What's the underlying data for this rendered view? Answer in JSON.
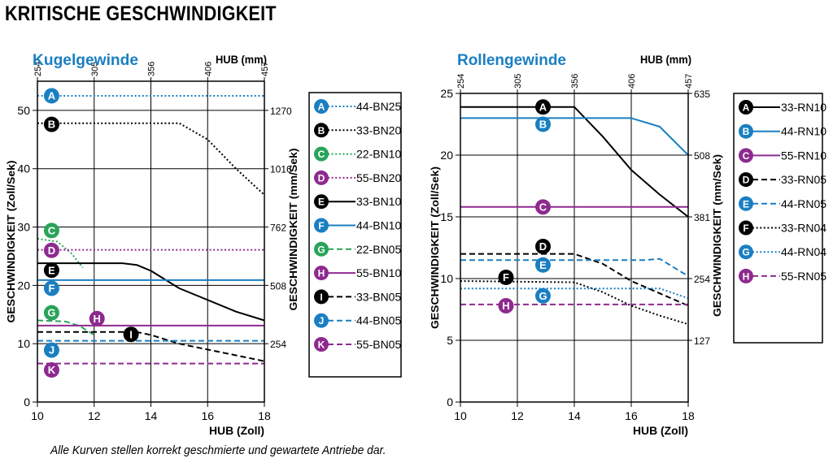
{
  "page": {
    "title": "KRITISCHE GESCHWINDIGKEIT",
    "footnote": "Alle Kurven stellen korrekt geschmierte und gewartete Antriebe dar."
  },
  "colors": {
    "black": "#000000",
    "blue": "#1a7fc1",
    "purple": "#8e2a8f",
    "green": "#2aa35a",
    "title_blue": "#1a7fc1",
    "frame": "#000000"
  },
  "chart_data": [
    {
      "type": "line",
      "title": "Kugelgewinde",
      "xlabel": "HUB (Zoll)",
      "ylabel": "GESCHWINDIGKEIT (Zoll/Sek)",
      "x2label": "HUB (mm)",
      "y2label": "GESCHWINDIGKEIT (mm/Sek)",
      "xlim": [
        10,
        18
      ],
      "ylim": [
        0,
        55
      ],
      "xticks": [
        10,
        12,
        14,
        16,
        18
      ],
      "yticks": [
        0,
        10,
        20,
        30,
        40,
        50
      ],
      "x2ticks": [
        {
          "label": "254",
          "x": 10
        },
        {
          "label": "305",
          "x": 12
        },
        {
          "label": "356",
          "x": 14
        },
        {
          "label": "406",
          "x": 16
        },
        {
          "label": "457",
          "x": 18
        }
      ],
      "y2ticks": [
        {
          "label": "254",
          "y": 10
        },
        {
          "label": "508",
          "y": 20
        },
        {
          "label": "762",
          "y": 30
        },
        {
          "label": "1016",
          "y": 40
        },
        {
          "label": "1270",
          "y": 50
        }
      ],
      "grid": true,
      "legend": "right",
      "series": [
        {
          "letter": "A",
          "name": "44-BN25",
          "color": "blue",
          "dash": "dot",
          "badge": [
            10.5,
            52.5
          ],
          "x": [
            10,
            18
          ],
          "y": [
            52.5,
            52.5
          ]
        },
        {
          "letter": "B",
          "name": "33-BN20",
          "color": "black",
          "dash": "dot",
          "badge": [
            10.5,
            47.6
          ],
          "x": [
            10,
            15,
            16,
            17,
            18
          ],
          "y": [
            47.8,
            47.8,
            45,
            40,
            35.5
          ]
        },
        {
          "letter": "C",
          "name": "22-BN10",
          "color": "green",
          "dash": "dot",
          "badge": [
            10.5,
            29.4
          ],
          "x": [
            10,
            10.7,
            11.2,
            11.6
          ],
          "y": [
            28,
            27.5,
            25.5,
            23
          ]
        },
        {
          "letter": "D",
          "name": "55-BN20",
          "color": "purple",
          "dash": "dot",
          "badge": [
            10.5,
            26
          ],
          "x": [
            10,
            18
          ],
          "y": [
            26.1,
            26.1
          ]
        },
        {
          "letter": "E",
          "name": "33-BN10",
          "color": "black",
          "dash": "solid",
          "badge": [
            10.5,
            22.6
          ],
          "x": [
            10,
            13,
            13.5,
            14,
            15,
            16,
            17,
            18
          ],
          "y": [
            23.8,
            23.8,
            23.5,
            22.5,
            19.5,
            17.5,
            15.5,
            14
          ]
        },
        {
          "letter": "F",
          "name": "44-BN10",
          "color": "blue",
          "dash": "solid",
          "badge": [
            10.5,
            19.5
          ],
          "x": [
            10,
            18
          ],
          "y": [
            20.9,
            20.9
          ]
        },
        {
          "letter": "G",
          "name": "22-BN05",
          "color": "green",
          "dash": "dash",
          "badge": [
            10.5,
            15.3
          ],
          "x": [
            10,
            11,
            11.5,
            12
          ],
          "y": [
            14,
            13.8,
            13,
            11.5
          ]
        },
        {
          "letter": "H",
          "name": "55-BN10",
          "color": "purple",
          "dash": "solid",
          "badge": [
            12.1,
            14.3
          ],
          "x": [
            10,
            18
          ],
          "y": [
            13.1,
            13.1
          ]
        },
        {
          "letter": "I",
          "name": "33-BN05",
          "color": "black",
          "dash": "dash",
          "badge": [
            13.3,
            11.6
          ],
          "x": [
            10,
            13.5,
            14,
            15,
            16,
            17,
            18
          ],
          "y": [
            12,
            12,
            11.5,
            10,
            9,
            8,
            7
          ]
        },
        {
          "letter": "J",
          "name": "44-BN05",
          "color": "blue",
          "dash": "dash",
          "badge": [
            10.5,
            8.9
          ],
          "x": [
            10,
            18
          ],
          "y": [
            10.5,
            10.5
          ]
        },
        {
          "letter": "K",
          "name": "55-BN05",
          "color": "purple",
          "dash": "dash",
          "badge": [
            10.5,
            5.5
          ],
          "x": [
            10,
            18
          ],
          "y": [
            6.6,
            6.6
          ]
        }
      ]
    },
    {
      "type": "line",
      "title": "Rollengewinde",
      "xlabel": "HUB (Zoll)",
      "ylabel": "GESCHWINDIGKEIT (Zoll/Sek)",
      "x2label": "HUB (mm)",
      "y2label": "GESCHWINDIGKEIT (mm/Sek)",
      "xlim": [
        10,
        18
      ],
      "ylim": [
        0,
        25
      ],
      "xticks": [
        10,
        12,
        14,
        16,
        18
      ],
      "yticks": [
        0,
        5,
        10,
        15,
        20,
        25
      ],
      "x2ticks": [
        {
          "label": "254",
          "x": 10
        },
        {
          "label": "305",
          "x": 12
        },
        {
          "label": "356",
          "x": 14
        },
        {
          "label": "406",
          "x": 16
        },
        {
          "label": "457",
          "x": 18
        }
      ],
      "y2ticks": [
        {
          "label": "127",
          "y": 5
        },
        {
          "label": "254",
          "y": 10
        },
        {
          "label": "381",
          "y": 15
        },
        {
          "label": "508",
          "y": 20
        },
        {
          "label": "635",
          "y": 25
        }
      ],
      "grid": true,
      "legend": "right",
      "series": [
        {
          "letter": "A",
          "name": "33-RN10",
          "color": "black",
          "dash": "solid",
          "badge": [
            12.9,
            23.9
          ],
          "x": [
            10,
            14,
            15,
            16,
            17,
            18
          ],
          "y": [
            23.9,
            23.9,
            21.5,
            18.8,
            16.8,
            15
          ]
        },
        {
          "letter": "B",
          "name": "44-RN10",
          "color": "blue",
          "dash": "solid",
          "badge": [
            12.9,
            22.5
          ],
          "x": [
            10,
            16,
            17,
            18
          ],
          "y": [
            23,
            23,
            22.3,
            20
          ]
        },
        {
          "letter": "C",
          "name": "55-RN10",
          "color": "purple",
          "dash": "solid",
          "badge": [
            12.9,
            15.8
          ],
          "x": [
            10,
            18
          ],
          "y": [
            15.8,
            15.8
          ]
        },
        {
          "letter": "D",
          "name": "33-RN05",
          "color": "black",
          "dash": "dash",
          "badge": [
            12.9,
            12.6
          ],
          "x": [
            10,
            14,
            15,
            16,
            17,
            18
          ],
          "y": [
            12,
            12,
            11.2,
            9.8,
            8.8,
            7.8
          ]
        },
        {
          "letter": "E",
          "name": "44-RN05",
          "color": "blue",
          "dash": "dash",
          "badge": [
            12.9,
            11.1
          ],
          "x": [
            10,
            16.5,
            17,
            18
          ],
          "y": [
            11.5,
            11.5,
            11.6,
            10.2
          ]
        },
        {
          "letter": "F",
          "name": "33-RN04",
          "color": "black",
          "dash": "dot",
          "badge": [
            11.6,
            10.1
          ],
          "x": [
            10,
            14,
            15,
            16,
            17,
            18
          ],
          "y": [
            9.8,
            9.7,
            8.9,
            7.8,
            7,
            6.3
          ]
        },
        {
          "letter": "G",
          "name": "44-RN04",
          "color": "blue",
          "dash": "dot",
          "badge": [
            12.9,
            8.6
          ],
          "x": [
            10,
            17,
            18
          ],
          "y": [
            9.2,
            9.2,
            8.4
          ]
        },
        {
          "letter": "H",
          "name": "55-RN05",
          "color": "purple",
          "dash": "dash",
          "badge": [
            11.6,
            7.8
          ],
          "x": [
            10,
            18
          ],
          "y": [
            7.9,
            7.9
          ]
        }
      ]
    }
  ]
}
